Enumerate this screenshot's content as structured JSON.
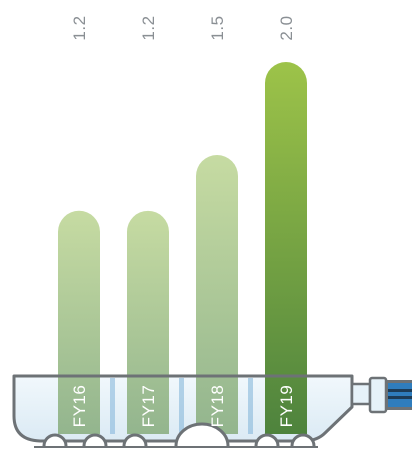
{
  "chart_data": {
    "type": "bar",
    "categories": [
      "FY16",
      "FY17",
      "FY18",
      "FY19"
    ],
    "values": [
      1.2,
      1.2,
      1.5,
      2.0
    ],
    "value_labels": [
      "1.2",
      "1.2",
      "1.5",
      "2.0"
    ],
    "title": "",
    "xlabel": "",
    "ylabel": "",
    "ylim": [
      0,
      2.0
    ],
    "grid": false,
    "colors": {
      "bar_light_top": "#c6dba2",
      "bar_light_bottom": "#93b58e",
      "bar_highlight_top": "#9dc349",
      "bar_highlight_bottom": "#4e833d",
      "tray_fill": "#e6f2f9",
      "tray_stroke": "#6d7276",
      "tray_accent": "#2f7dbd"
    }
  }
}
